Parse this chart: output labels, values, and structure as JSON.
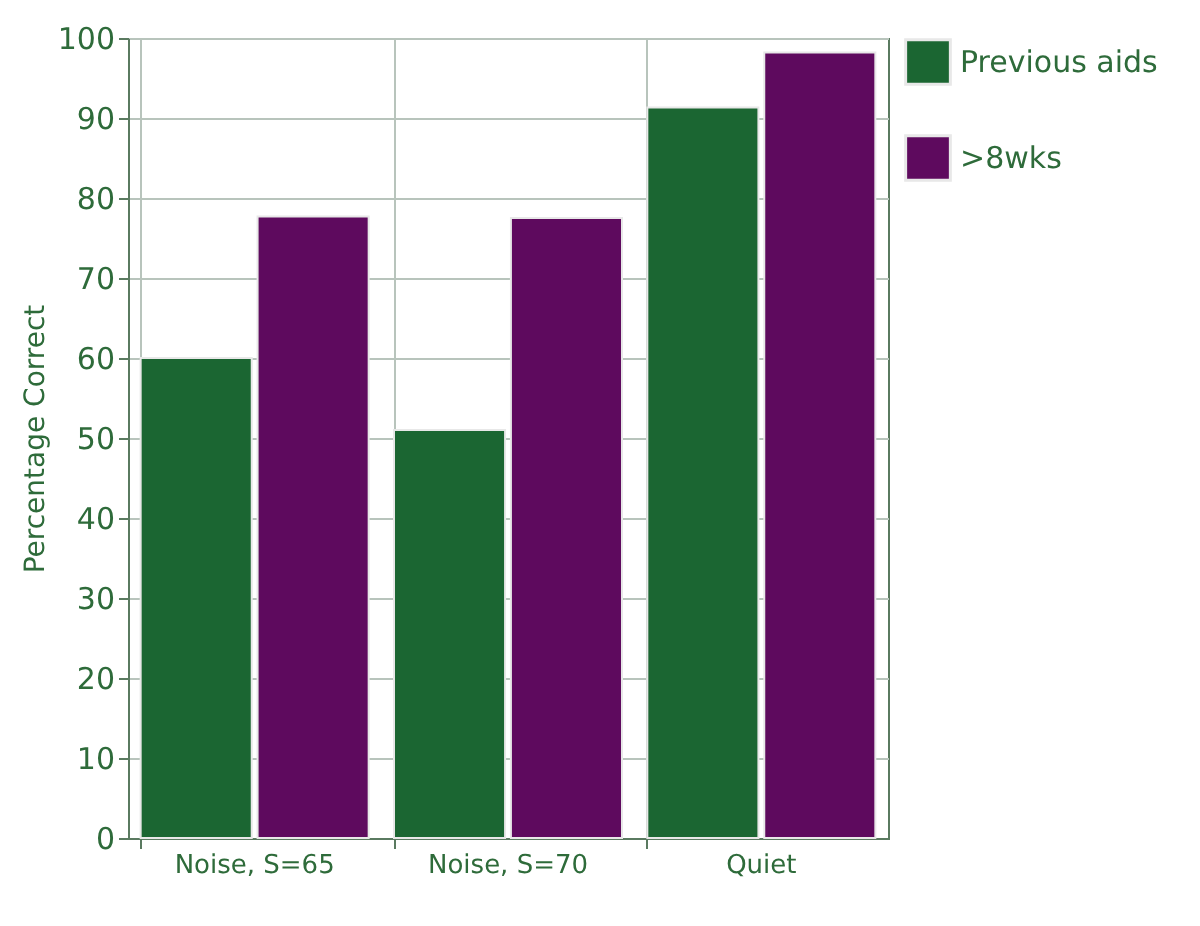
{
  "chart_data": {
    "type": "bar",
    "ylabel": "Percentage Correct",
    "categories": [
      "Noise, S=65",
      "Noise, S=70",
      "Quiet"
    ],
    "series": [
      {
        "name": "Previous aids",
        "color": "#1b6632",
        "values": [
          60,
          51,
          91.3
        ]
      },
      {
        "name": ">8wks",
        "color": "#5e0a5e",
        "values": [
          77.7,
          77.5,
          98.2
        ]
      }
    ],
    "ylim": [
      0,
      100
    ],
    "yticks": [
      0,
      10,
      20,
      30,
      40,
      50,
      60,
      70,
      80,
      90,
      100
    ],
    "grid": true,
    "legend": "right"
  }
}
